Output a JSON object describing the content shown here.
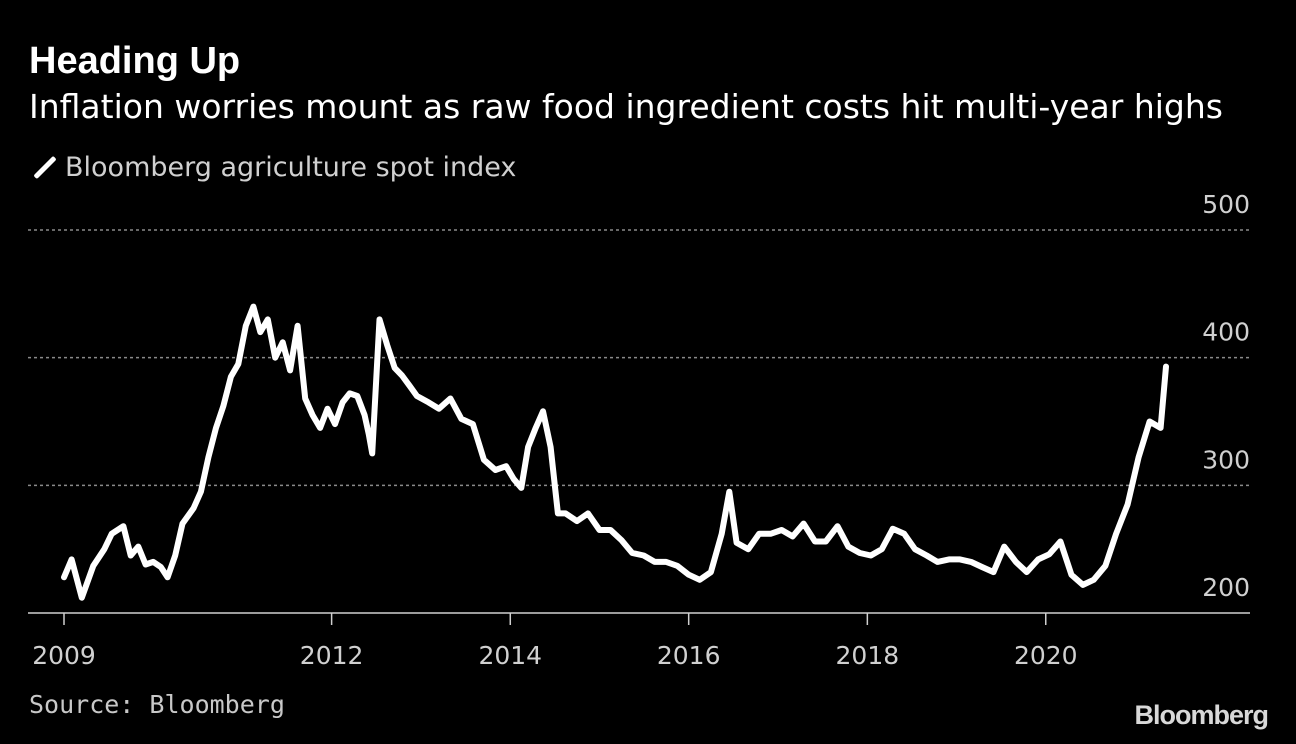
{
  "chart_data": {
    "type": "line",
    "title": "Heading Up",
    "subtitle": "Inflation worries mount as raw food ingredient costs hit multi-year highs",
    "xlabel": "",
    "ylabel": "",
    "x_ticks": [
      "2009",
      "2012",
      "2014",
      "2016",
      "2018",
      "2020"
    ],
    "y_ticks": [
      200,
      300,
      400,
      500
    ],
    "ylim": [
      200,
      500
    ],
    "grid": true,
    "legend_position": "top-left",
    "series": [
      {
        "name": "Bloomberg agriculture spot index",
        "color": "#ffffff",
        "x": [
          "2009-01-01",
          "2009-02-01",
          "2009-03-15",
          "2009-05-01",
          "2009-06-15",
          "2009-07-15",
          "2009-09-01",
          "2009-10-01",
          "2009-11-01",
          "2009-12-01",
          "2010-01-01",
          "2010-02-01",
          "2010-03-01",
          "2010-04-01",
          "2010-05-01",
          "2010-06-15",
          "2010-07-15",
          "2010-08-15",
          "2010-09-15",
          "2010-10-15",
          "2010-11-15",
          "2010-12-15",
          "2011-01-15",
          "2011-02-15",
          "2011-03-15",
          "2011-04-15",
          "2011-05-15",
          "2011-06-15",
          "2011-07-15",
          "2011-08-15",
          "2011-09-15",
          "2011-10-15",
          "2011-11-15",
          "2011-12-15",
          "2012-01-15",
          "2012-02-15",
          "2012-03-15",
          "2012-04-15",
          "2012-05-15",
          "2012-06-01",
          "2012-06-15",
          "2012-07-15",
          "2012-08-15",
          "2012-09-15",
          "2012-10-15",
          "2012-11-15",
          "2012-12-15",
          "2013-02-01",
          "2013-03-15",
          "2013-05-01",
          "2013-06-15",
          "2013-08-01",
          "2013-09-15",
          "2013-11-01",
          "2013-12-15",
          "2014-01-15",
          "2014-02-15",
          "2014-03-15",
          "2014-04-15",
          "2014-05-15",
          "2014-06-15",
          "2014-07-15",
          "2014-08-15",
          "2014-10-01",
          "2014-11-15",
          "2015-01-01",
          "2015-02-15",
          "2015-04-01",
          "2015-05-15",
          "2015-07-01",
          "2015-08-15",
          "2015-10-01",
          "2015-11-15",
          "2016-01-01",
          "2016-02-15",
          "2016-04-01",
          "2016-05-15",
          "2016-06-15",
          "2016-07-15",
          "2016-09-01",
          "2016-10-15",
          "2016-12-01",
          "2017-01-15",
          "2017-03-01",
          "2017-04-15",
          "2017-06-01",
          "2017-07-15",
          "2017-09-01",
          "2017-10-15",
          "2017-12-01",
          "2018-01-15",
          "2018-03-01",
          "2018-04-15",
          "2018-06-01",
          "2018-07-15",
          "2018-09-01",
          "2018-10-15",
          "2018-12-01",
          "2019-01-15",
          "2019-03-01",
          "2019-04-15",
          "2019-06-01",
          "2019-07-15",
          "2019-09-01",
          "2019-10-15",
          "2019-12-01",
          "2020-01-15",
          "2020-03-01",
          "2020-04-15",
          "2020-06-01",
          "2020-07-15",
          "2020-09-01",
          "2020-10-15",
          "2020-12-01",
          "2021-01-15",
          "2021-03-01",
          "2021-04-15",
          "2021-05-07"
        ],
        "y": [
          228,
          242,
          212,
          237,
          250,
          262,
          268,
          245,
          252,
          238,
          240,
          236,
          228,
          245,
          270,
          282,
          295,
          322,
          345,
          362,
          385,
          395,
          425,
          440,
          420,
          430,
          400,
          412,
          390,
          425,
          368,
          355,
          345,
          360,
          348,
          365,
          372,
          370,
          355,
          340,
          325,
          430,
          410,
          392,
          386,
          378,
          370,
          365,
          360,
          368,
          352,
          348,
          320,
          312,
          315,
          305,
          298,
          330,
          345,
          358,
          330,
          278,
          278,
          272,
          278,
          265,
          265,
          257,
          247,
          245,
          240,
          240,
          237,
          230,
          226,
          232,
          262,
          295,
          255,
          250,
          262,
          262,
          265,
          260,
          270,
          256,
          256,
          268,
          252,
          247,
          245,
          250,
          266,
          262,
          250,
          245,
          240,
          242,
          242,
          240,
          236,
          232,
          252,
          240,
          232,
          242,
          246,
          256,
          230,
          222,
          226,
          237,
          262,
          285,
          322,
          350,
          345,
          393
        ]
      }
    ]
  },
  "legend": {
    "label": "Bloomberg agriculture spot index"
  },
  "footer": {
    "source": "Source: Bloomberg",
    "brand": "Bloomberg"
  }
}
